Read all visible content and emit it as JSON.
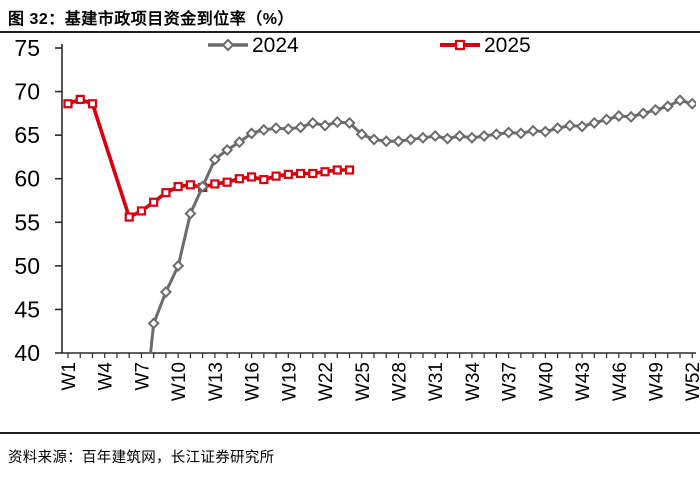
{
  "title": "图 32：基建市政项目资金到位率（%）",
  "source": "资料来源：百年建筑网，长江证券研究所",
  "colors": {
    "series_2024": "#6b6b6b",
    "series_2025": "#d7000f",
    "axis": "#2b2b2b",
    "text": "#000000"
  },
  "chart_data": {
    "type": "line",
    "title": "基建市政项目资金到位率（%）",
    "xlabel": "",
    "ylabel": "",
    "ylim": [
      40,
      75
    ],
    "ytick_step": 5,
    "x_is_week_number": true,
    "x_range": [
      1,
      52
    ],
    "xtick_labels": [
      "W1",
      "W4",
      "W7",
      "W10",
      "W13",
      "W16",
      "W19",
      "W22",
      "W25",
      "W28",
      "W31",
      "W34",
      "W37",
      "W40",
      "W43",
      "W46",
      "W49",
      "W52"
    ],
    "grid": false,
    "legend_position": "top",
    "series": [
      {
        "name": "2024",
        "marker": "diamond",
        "color": "#6b6b6b",
        "note": "line enters plot from below 40 before W8",
        "points": [
          [
            7,
            30.0
          ],
          [
            8,
            43.4
          ],
          [
            9,
            47.0
          ],
          [
            10,
            50.0
          ],
          [
            11,
            56.0
          ],
          [
            12,
            59.1
          ],
          [
            13,
            62.2
          ],
          [
            14,
            63.3
          ],
          [
            15,
            64.2
          ],
          [
            16,
            65.2
          ],
          [
            17,
            65.6
          ],
          [
            18,
            65.8
          ],
          [
            19,
            65.7
          ],
          [
            20,
            65.9
          ],
          [
            21,
            66.4
          ],
          [
            22,
            66.1
          ],
          [
            23,
            66.5
          ],
          [
            24,
            66.4
          ],
          [
            25,
            65.1
          ],
          [
            26,
            64.5
          ],
          [
            27,
            64.3
          ],
          [
            28,
            64.3
          ],
          [
            29,
            64.5
          ],
          [
            30,
            64.7
          ],
          [
            31,
            64.9
          ],
          [
            32,
            64.6
          ],
          [
            33,
            64.9
          ],
          [
            34,
            64.7
          ],
          [
            35,
            64.9
          ],
          [
            36,
            65.1
          ],
          [
            37,
            65.3
          ],
          [
            38,
            65.2
          ],
          [
            39,
            65.5
          ],
          [
            40,
            65.4
          ],
          [
            41,
            65.8
          ],
          [
            42,
            66.1
          ],
          [
            43,
            66.0
          ],
          [
            44,
            66.4
          ],
          [
            45,
            66.8
          ],
          [
            46,
            67.2
          ],
          [
            47,
            67.1
          ],
          [
            48,
            67.5
          ],
          [
            49,
            67.9
          ],
          [
            50,
            68.3
          ],
          [
            51,
            69.0
          ],
          [
            52,
            68.6
          ]
        ]
      },
      {
        "name": "2025",
        "marker": "square",
        "color": "#d7000f",
        "note": "no data W4-W5, straight segment from W3 down to W6",
        "points": [
          [
            1,
            68.6
          ],
          [
            2,
            69.1
          ],
          [
            3,
            68.6
          ],
          [
            6,
            55.6
          ],
          [
            7,
            56.3
          ],
          [
            8,
            57.3
          ],
          [
            9,
            58.4
          ],
          [
            10,
            59.1
          ],
          [
            11,
            59.3
          ],
          [
            12,
            59.0
          ],
          [
            13,
            59.4
          ],
          [
            14,
            59.6
          ],
          [
            15,
            60.0
          ],
          [
            16,
            60.2
          ],
          [
            17,
            59.9
          ],
          [
            18,
            60.3
          ],
          [
            19,
            60.5
          ],
          [
            20,
            60.6
          ],
          [
            21,
            60.6
          ],
          [
            22,
            60.8
          ],
          [
            23,
            61.0
          ],
          [
            24,
            61.0
          ]
        ]
      }
    ]
  }
}
